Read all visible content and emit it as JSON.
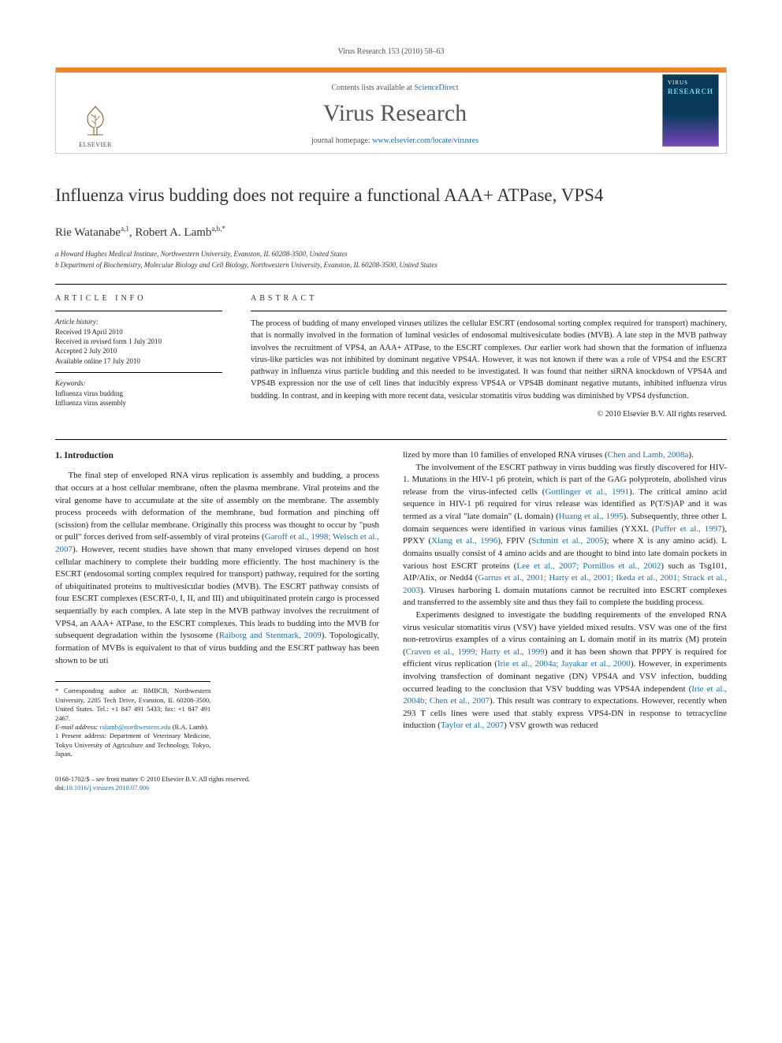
{
  "running_head": "Virus Research 153 (2010) 58–63",
  "banner": {
    "contents_prefix": "Contents lists available at ",
    "contents_link": "ScienceDirect",
    "journal_name": "Virus Research",
    "homepage_prefix": "journal homepage: ",
    "homepage_link": "www.elsevier.com/locate/virusres",
    "publisher_label": "ELSEVIER",
    "cover_label1": "VIRUS",
    "cover_label2": "RESEARCH"
  },
  "title": "Influenza virus budding does not require a functional AAA+ ATPase, VPS4",
  "authors_html": "Rie Watanabe<sup>a,1</sup>, Robert A. Lamb<sup>a,b,*</sup>",
  "affiliations": [
    "a Howard Hughes Medical Institute, Northwestern University, Evanston, IL 60208-3500, United States",
    "b Department of Biochemistry, Molecular Biology and Cell Biology, Northwestern University, Evanston, IL 60208-3500, United States"
  ],
  "info": {
    "label": "ARTICLE INFO",
    "history_label": "Article history:",
    "history": [
      "Received 19 April 2010",
      "Received in revised form 1 July 2010",
      "Accepted 2 July 2010",
      "Available online 17 July 2010"
    ],
    "keywords_label": "Keywords:",
    "keywords": [
      "Influenza virus budding",
      "Influenza virus assembly"
    ]
  },
  "abstract": {
    "label": "ABSTRACT",
    "text": "The process of budding of many enveloped viruses utilizes the cellular ESCRT (endosomal sorting complex required for transport) machinery, that is normally involved in the formation of luminal vesicles of endosomal multivesiculate bodies (MVB). A late step in the MVB pathway involves the recruitment of VPS4, an AAA+ ATPase, to the ESCRT complexes. Our earlier work had shown that the formation of influenza virus-like particles was not inhibited by dominant negative VPS4A. However, it was not known if there was a role of VPS4 and the ESCRT pathway in influenza virus particle budding and this needed to be investigated. It was found that neither siRNA knockdown of VPS4A and VPS4B expression nor the use of cell lines that inducibly express VPS4A or VPS4B dominant negative mutants, inhibited influenza virus budding. In contrast, and in keeping with more recent data, vesicular stomatitis virus budding was diminished by VPS4 dysfunction.",
    "copyright": "© 2010 Elsevier B.V. All rights reserved."
  },
  "body": {
    "section_number": "1.",
    "section_title": "Introduction",
    "p1": "The final step of enveloped RNA virus replication is assembly and budding, a process that occurs at a host cellular membrane, often the plasma membrane. Viral proteins and the viral genome have to accumulate at the site of assembly on the membrane. The assembly process proceeds with deformation of the membrane, bud formation and pinching off (scission) from the cellular membrane. Originally this process was thought to occur by \"push or pull\" forces derived from self-assembly of viral proteins (",
    "ref1": "Garoff et al., 1998; Welsch et al., 2007",
    "p1b": "). However, recent studies have shown that many enveloped viruses depend on host cellular machinery to complete their budding more efficiently. The host machinery is the ESCRT (endosomal sorting complex required for transport) pathway, required for the sorting of ubiquitinated proteins to multivesicular bodies (MVB). The ESCRT pathway consists of four ESCRT complexes (ESCRT-0, I, II, and III) and ubiquitinated protein cargo is processed sequentially by each complex. A late step in the MVB pathway involves the recruitment of VPS4, an AAA+ ATPase, to the ESCRT complexes. This leads to budding into the MVB for subsequent degradation within the lysosome (",
    "ref2": "Raiborg and Stenmark, 2009",
    "p1c": "). Topologically, formation of MVBs is equivalent to that of virus budding and the ESCRT pathway has been shown to be uti",
    "p2a": "lized by more than 10 families of enveloped RNA viruses (",
    "ref3": "Chen and Lamb, 2008a",
    "p2b": ").",
    "p3a": "The involvement of the ESCRT pathway in virus budding was firstly discovered for HIV-1. Mutations in the HIV-1 p6 protein, which is part of the GAG polyprotein, abolished virus release from the virus-infected cells (",
    "ref4": "Gottlinger et al., 1991",
    "p3b": "). The critical amino acid sequence in HIV-1 p6 required for virus release was identified as P(T/S)AP and it was termed as a viral \"late domain\" (L domain) (",
    "ref5": "Huang et al., 1995",
    "p3c": "). Subsequently, three other L domain sequences were identified in various virus families (YXXL (",
    "ref6": "Puffer et al., 1997",
    "p3d": "), PPXY (",
    "ref7": "Xiang et al., 1996",
    "p3e": "), FPIV (",
    "ref8": "Schmitt et al., 2005",
    "p3f": "); where X is any amino acid). L domains usually consist of 4 amino acids and are thought to bind into late domain pockets in various host ESCRT proteins (",
    "ref9": "Lee et al., 2007; Pornillos et al., 2002",
    "p3g": ") such as Tsg101, AIP/Alix, or Nedd4 (",
    "ref10": "Garrus et al., 2001; Harty et al., 2001; Ikeda et al., 2001; Strack et al., 2003",
    "p3h": "). Viruses harboring L domain mutations cannot be recruited into ESCRT complexes and transferred to the assembly site and thus they fail to complete the budding process.",
    "p4a": "Experiments designed to investigate the budding requirements of the enveloped RNA virus vesicular stomatitis virus (VSV) have yielded mixed results. VSV was one of the first non-retrovirus examples of a virus containing an L domain motif in its matrix (M) protein (",
    "ref11": "Craven et al., 1999; Harty et al., 1999",
    "p4b": ") and it has been shown that PPPY is required for efficient virus replication (",
    "ref12": "Irie et al., 2004a; Jayakar et al., 2000",
    "p4c": "). However, in experiments involving transfection of dominant negative (DN) VPS4A and VSV infection, budding occurred leading to the conclusion that VSV budding was VPS4A independent (",
    "ref13": "Irie et al., 2004b; Chen et al., 2007",
    "p4d": "). This result was contrary to expectations. However, recently when 293 T cells lines were used that stably express VPS4-DN in response to tetracycline induction (",
    "ref14": "Taylor et al., 2007",
    "p4e": ") VSV growth was reduced"
  },
  "footnotes": {
    "corr": "* Corresponding author at: BMBCB, Northwestern University, 2205 Tech Drive, Evanston, IL 60208-3500, United States. Tel.: +1 847 491 5433; fax: +1 847 491 2467.",
    "email_label": "E-mail address: ",
    "email": "ralamb@northwestern.edu",
    "email_suffix": " (R.A. Lamb).",
    "present": "1 Present address: Department of Veterinary Medicine, Tokyo University of Agriculture and Technology, Tokyo, Japan."
  },
  "bottom": {
    "line1": "0168-1702/$ – see front matter © 2010 Elsevier B.V. All rights reserved.",
    "doi_prefix": "doi:",
    "doi": "10.1016/j.virusres.2010.07.006"
  },
  "colors": {
    "accent_orange": "#f5821f",
    "link_blue": "#1a6fb0",
    "text": "#222222",
    "muted": "#555555",
    "cover_top": "#0a3a5a",
    "cover_bottom": "#7548b8"
  }
}
